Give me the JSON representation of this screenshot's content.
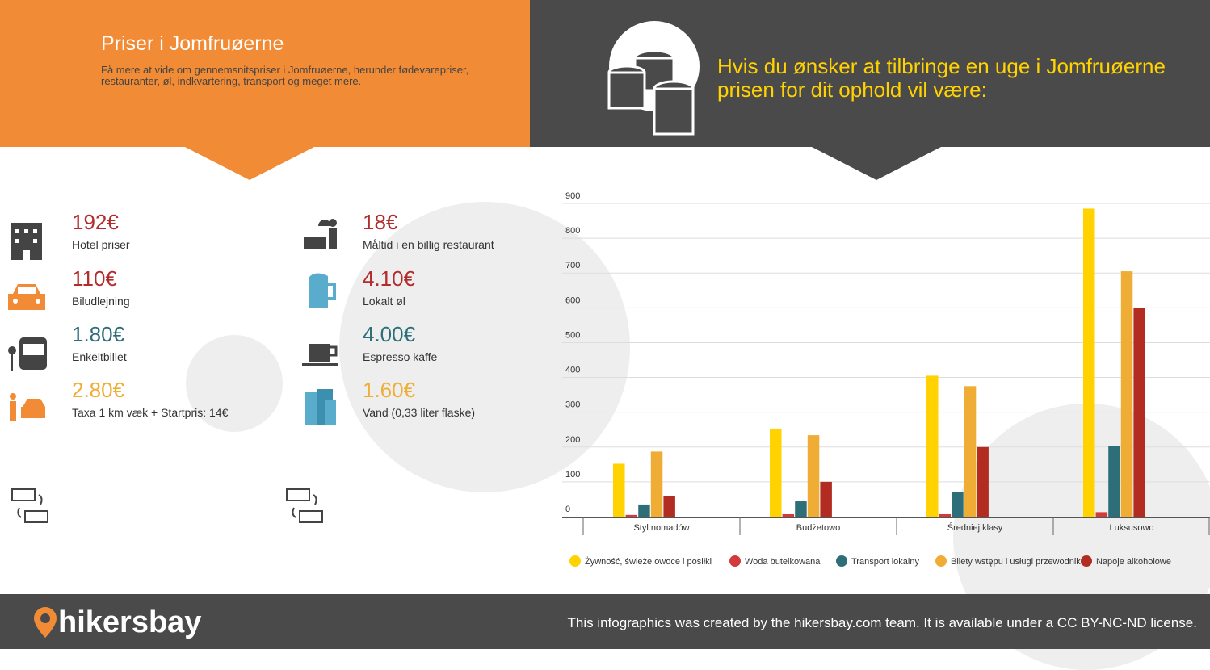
{
  "header": {
    "title": "Priser i Jomfruøerne",
    "subtitle": "Få mere at vide om gennemsnitspriser i Jomfruøerne, herunder fødevarepriser, restauranter, øl, indkvartering, transport og meget mere.",
    "headline": "Hvis du ønsker at tilbringe en uge i Jomfruøerne prisen for dit ophold vil være:"
  },
  "prices_left": [
    {
      "value": "192€",
      "label": "Hotel priser",
      "color": "#b22c2c",
      "icon": "hotel-icon"
    },
    {
      "value": "110€",
      "label": "Biludlejning",
      "color": "#b22c2c",
      "icon": "car-icon"
    },
    {
      "value": "1.80€",
      "label": "Enkeltbillet",
      "color": "#2e6e78",
      "icon": "bus-icon"
    },
    {
      "value": "2.80€",
      "label": "Taxa 1 km væk + Startpris: 14€",
      "color": "#f0ad35",
      "icon": "taxi-icon"
    }
  ],
  "prices_right": [
    {
      "value": "18€",
      "label": "Måltid i en billig restaurant",
      "color": "#b22c2c",
      "icon": "restaurant-icon"
    },
    {
      "value": "4.10€",
      "label": "Lokalt øl",
      "color": "#b22c2c",
      "icon": "beer-icon"
    },
    {
      "value": "4.00€",
      "label": "Espresso kaffe",
      "color": "#2e6e78",
      "icon": "coffee-icon"
    },
    {
      "value": "1.60€",
      "label": "Vand (0,33 liter flaske)",
      "color": "#f0ad35",
      "icon": "water-icon"
    }
  ],
  "chart_data": {
    "type": "bar",
    "categories": [
      "Styl nomadów",
      "Budżetowo",
      "Średniej klasy",
      "Luksusowo"
    ],
    "series": [
      {
        "name": "Żywność, świeże owoce i posiłki",
        "color": "#ffd200",
        "values": [
          152,
          253,
          405,
          885
        ]
      },
      {
        "name": "Woda butelkowana",
        "color": "#d33a3a",
        "values": [
          5,
          7,
          7,
          13
        ]
      },
      {
        "name": "Transport lokalny",
        "color": "#2e6e78",
        "values": [
          35,
          44,
          71,
          204
        ]
      },
      {
        "name": "Bilety wstępu i usługi przewodnika",
        "color": "#f0ad35",
        "values": [
          187,
          234,
          375,
          705
        ]
      },
      {
        "name": "Napoje alkoholowe",
        "color": "#b22c22",
        "values": [
          60,
          100,
          200,
          600
        ]
      }
    ],
    "yticks": [
      0,
      100,
      200,
      300,
      400,
      500,
      600,
      700,
      800,
      900
    ],
    "ylim": [
      0,
      900
    ],
    "grid": true,
    "legend": "bottom"
  },
  "footer": {
    "brand": "hikersbay",
    "license": "This infographics was created by the hikersbay.com team. It is available under a CC BY-NC-ND license."
  }
}
